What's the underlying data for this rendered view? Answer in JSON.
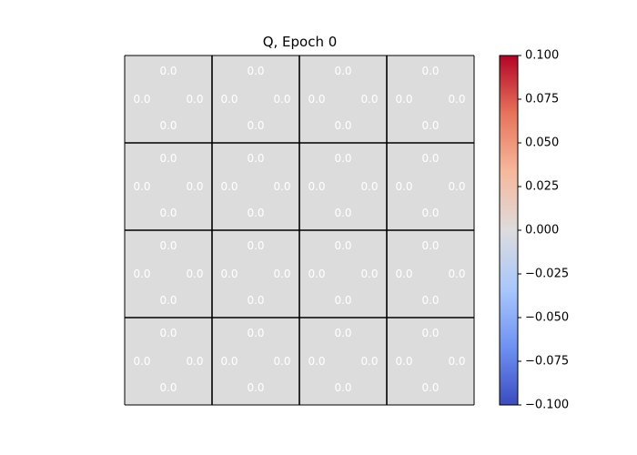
{
  "chart_data": {
    "type": "heatmap",
    "title": "Q, Epoch 0",
    "grid_rows": 4,
    "grid_cols": 4,
    "cells": [
      {
        "row": 0,
        "col": 0,
        "up": 0.0,
        "left": 0.0,
        "right": 0.0,
        "down": 0.0
      },
      {
        "row": 0,
        "col": 1,
        "up": 0.0,
        "left": 0.0,
        "right": 0.0,
        "down": 0.0
      },
      {
        "row": 0,
        "col": 2,
        "up": 0.0,
        "left": 0.0,
        "right": 0.0,
        "down": 0.0
      },
      {
        "row": 0,
        "col": 3,
        "up": 0.0,
        "left": 0.0,
        "right": 0.0,
        "down": 0.0
      },
      {
        "row": 1,
        "col": 0,
        "up": 0.0,
        "left": 0.0,
        "right": 0.0,
        "down": 0.0
      },
      {
        "row": 1,
        "col": 1,
        "up": 0.0,
        "left": 0.0,
        "right": 0.0,
        "down": 0.0
      },
      {
        "row": 1,
        "col": 2,
        "up": 0.0,
        "left": 0.0,
        "right": 0.0,
        "down": 0.0
      },
      {
        "row": 1,
        "col": 3,
        "up": 0.0,
        "left": 0.0,
        "right": 0.0,
        "down": 0.0
      },
      {
        "row": 2,
        "col": 0,
        "up": 0.0,
        "left": 0.0,
        "right": 0.0,
        "down": 0.0
      },
      {
        "row": 2,
        "col": 1,
        "up": 0.0,
        "left": 0.0,
        "right": 0.0,
        "down": 0.0
      },
      {
        "row": 2,
        "col": 2,
        "up": 0.0,
        "left": 0.0,
        "right": 0.0,
        "down": 0.0
      },
      {
        "row": 2,
        "col": 3,
        "up": 0.0,
        "left": 0.0,
        "right": 0.0,
        "down": 0.0
      },
      {
        "row": 3,
        "col": 0,
        "up": 0.0,
        "left": 0.0,
        "right": 0.0,
        "down": 0.0
      },
      {
        "row": 3,
        "col": 1,
        "up": 0.0,
        "left": 0.0,
        "right": 0.0,
        "down": 0.0
      },
      {
        "row": 3,
        "col": 2,
        "up": 0.0,
        "left": 0.0,
        "right": 0.0,
        "down": 0.0
      },
      {
        "row": 3,
        "col": 3,
        "up": 0.0,
        "left": 0.0,
        "right": 0.0,
        "down": 0.0
      }
    ],
    "colorbar": {
      "colormap": "coolwarm",
      "vmin": -0.1,
      "vmax": 0.1,
      "ticks": [
        "0.100",
        "0.075",
        "0.050",
        "0.025",
        "0.000",
        "−0.025",
        "−0.050",
        "−0.075",
        "−0.100"
      ],
      "tick_values": [
        0.1,
        0.075,
        0.05,
        0.025,
        0.0,
        -0.025,
        -0.05,
        -0.075,
        -0.1
      ]
    },
    "colors": {
      "cell_fill": "#dddcdc",
      "cell_text": "#ffffff",
      "grid_line": "#000000",
      "colormap_stops": [
        "#3b4cc0",
        "#6f92f3",
        "#aac7fd",
        "#dddcdc",
        "#f7b89c",
        "#e7745b",
        "#b40426"
      ]
    }
  }
}
